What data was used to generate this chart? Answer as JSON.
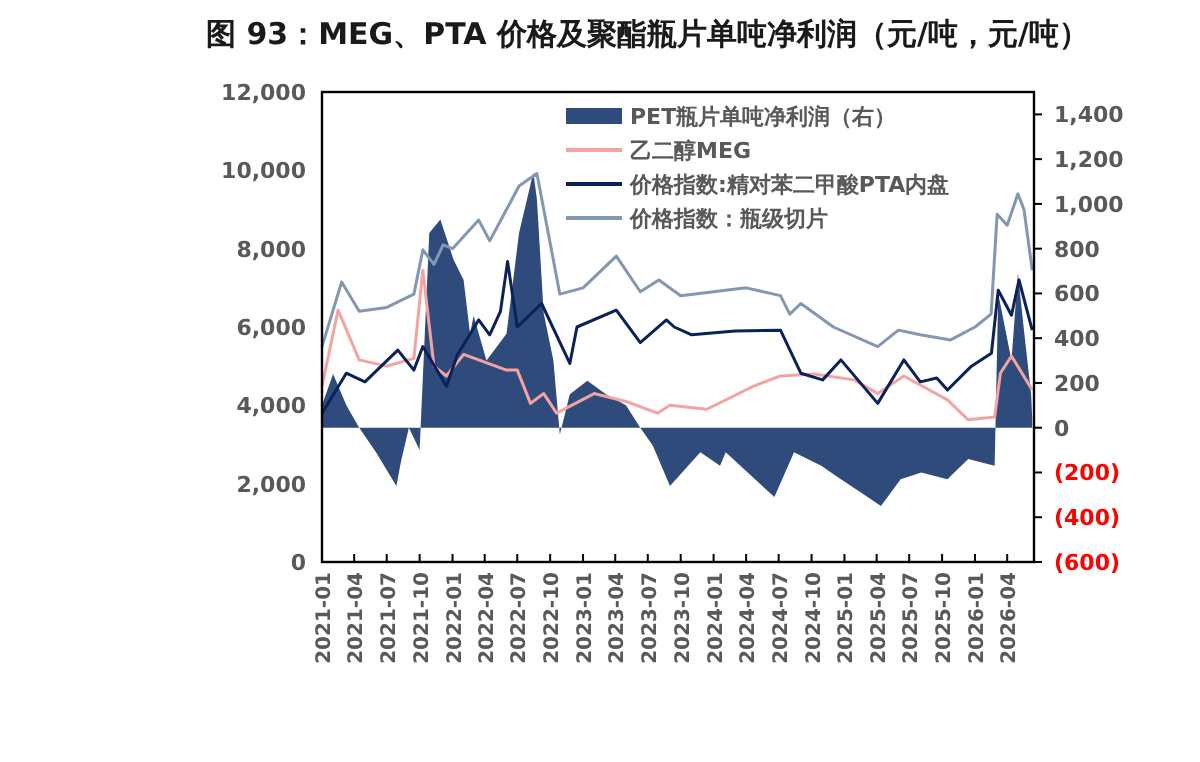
{
  "chart_data": {
    "type": "line",
    "title": "图 93：MEG、PTA 价格及聚酯瓶片单吨净利润（元/吨，元/吨）",
    "legend": "top",
    "grid": false,
    "xlim": [
      "2021-01-01",
      "2026-06-15"
    ],
    "xticks": [
      "2021-01",
      "2021-04",
      "2021-07",
      "2021-10",
      "2022-01",
      "2022-04",
      "2022-07",
      "2022-10",
      "2023-01",
      "2023-04",
      "2023-07",
      "2023-10",
      "2024-01",
      "2024-04",
      "2024-07",
      "2024-10",
      "2025-01",
      "2025-04",
      "2025-07",
      "2025-10",
      "2026-01",
      "2026-04"
    ],
    "ylim": [
      0,
      12000
    ],
    "yticks": [
      0,
      {
        "value": 2000,
        "label": "2,000"
      },
      {
        "value": 4000,
        "label": "4,000"
      },
      {
        "value": 6000,
        "label": "6,000"
      },
      {
        "value": 8000,
        "label": "8,000"
      },
      {
        "value": 10000,
        "label": "10,000"
      },
      {
        "value": 12000,
        "label": "12,000"
      }
    ],
    "y2lim": [
      -600,
      1500
    ],
    "y2ticks": [
      {
        "value": -600,
        "label": "(600)"
      },
      {
        "value": -400,
        "label": "(400)"
      },
      {
        "value": -200,
        "label": "(200)"
      },
      0,
      {
        "value": 200,
        "label": "200"
      },
      {
        "value": 400,
        "label": "400"
      },
      {
        "value": 600,
        "label": "600"
      },
      {
        "value": 800,
        "label": "800"
      },
      {
        "value": 1000,
        "label": "1,000"
      },
      {
        "value": 1200,
        "label": "1,200"
      },
      {
        "value": 1400,
        "label": "1,400"
      }
    ],
    "series": [
      {
        "name": "PET瓶片单吨净利润（右）",
        "type": "area",
        "axis": "y2",
        "color": "#2f4b7c",
        "x": [
          "2021-01-01",
          "2021-02-01",
          "2021-03-10",
          "2021-04-15",
          "2021-06-01",
          "2021-07-28",
          "2021-08-10",
          "2021-09-01",
          "2021-10-01",
          "2021-10-28",
          "2021-11-28",
          "2022-01-04",
          "2022-02-01",
          "2022-02-19",
          "2022-03-01",
          "2022-04-06",
          "2022-06-01",
          "2022-07-06",
          "2022-08-15",
          "2022-08-25",
          "2022-09-13",
          "2022-10-10",
          "2022-10-28",
          "2022-11-25",
          "2023-01-13",
          "2023-03-06",
          "2023-05-01",
          "2023-06-10",
          "2023-07-15",
          "2023-09-01",
          "2023-11-25",
          "2024-01-19",
          "2024-02-04",
          "2024-06-19",
          "2024-08-13",
          "2024-10-28",
          "2024-12-22",
          "2025-02-16",
          "2025-04-13",
          "2025-06-07",
          "2025-08-04",
          "2025-10-16",
          "2025-12-13",
          "2026-02-25",
          "2026-03-07",
          "2026-04-13",
          "2026-05-01",
          "2026-05-19",
          "2026-06-07",
          "2026-06-10"
        ],
        "values": [
          100,
          240,
          100,
          0,
          -110,
          -260,
          -150,
          0,
          -100,
          870,
          930,
          750,
          660,
          420,
          500,
          300,
          420,
          870,
          1140,
          1020,
          510,
          300,
          -30,
          150,
          210,
          150,
          100,
          0,
          -80,
          -260,
          -110,
          -170,
          -110,
          -310,
          -110,
          -170,
          -230,
          -290,
          -350,
          -230,
          -200,
          -230,
          -140,
          -170,
          600,
          300,
          690,
          420,
          150,
          40
        ]
      },
      {
        "name": "乙二醇MEG",
        "color": "#f4a3a3",
        "x": [
          "2021-01-01",
          "2021-02-15",
          "2021-04-15",
          "2021-07-01",
          "2021-09-15",
          "2021-10-10",
          "2021-11-10",
          "2021-12-15",
          "2022-02-01",
          "2022-06-01",
          "2022-07-01",
          "2022-08-07",
          "2022-09-13",
          "2022-10-19",
          "2023-02-01",
          "2023-05-01",
          "2023-07-28",
          "2023-09-01",
          "2023-12-13",
          "2024-04-22",
          "2024-07-06",
          "2024-10-07",
          "2025-01-28",
          "2025-04-04",
          "2025-06-16",
          "2025-10-16",
          "2025-12-13",
          "2026-02-25",
          "2026-03-13",
          "2026-04-13",
          "2026-06-10"
        ],
        "values": [
          4490,
          6430,
          5160,
          5000,
          5200,
          7450,
          5000,
          4750,
          5300,
          4900,
          4900,
          4050,
          4300,
          3800,
          4300,
          4100,
          3800,
          4000,
          3900,
          4490,
          4750,
          4800,
          4650,
          4300,
          4750,
          4140,
          3630,
          3700,
          4820,
          5260,
          4390
        ]
      },
      {
        "name": "价格指数:精对苯二甲酸PTA内盘",
        "color": "#0b2159",
        "x": [
          "2021-01-01",
          "2021-03-10",
          "2021-05-01",
          "2021-08-01",
          "2021-09-15",
          "2021-10-10",
          "2021-12-15",
          "2022-01-15",
          "2022-03-15",
          "2022-04-15",
          "2022-05-15",
          "2022-06-04",
          "2022-07-01",
          "2022-09-07",
          "2022-11-25",
          "2022-12-15",
          "2023-04-04",
          "2023-06-10",
          "2023-08-22",
          "2023-09-13",
          "2023-11-01",
          "2024-03-01",
          "2024-07-06",
          "2024-09-01",
          "2024-11-01",
          "2024-12-22",
          "2025-04-04",
          "2025-06-16",
          "2025-08-01",
          "2025-09-16",
          "2025-10-16",
          "2025-12-22",
          "2026-02-16",
          "2026-03-07",
          "2026-04-13",
          "2026-05-04",
          "2026-06-10"
        ],
        "values": [
          3800,
          4820,
          4600,
          5410,
          4900,
          5500,
          4490,
          5300,
          6180,
          5800,
          6400,
          7670,
          6000,
          6600,
          5070,
          6000,
          6430,
          5600,
          6180,
          6000,
          5800,
          5900,
          5920,
          4820,
          4650,
          5160,
          4050,
          5160,
          4600,
          4700,
          4390,
          5000,
          5330,
          6940,
          6300,
          7200,
          5920
        ]
      },
      {
        "name": "价格指数：瓶级切片",
        "color": "#8497b0",
        "x": [
          "2021-01-01",
          "2021-02-25",
          "2021-04-15",
          "2021-07-01",
          "2021-09-15",
          "2021-10-10",
          "2021-11-10",
          "2021-12-06",
          "2022-01-01",
          "2022-03-15",
          "2022-04-15",
          "2022-06-01",
          "2022-07-06",
          "2022-08-25",
          "2022-10-28",
          "2023-01-01",
          "2023-04-04",
          "2023-06-10",
          "2023-08-01",
          "2023-10-01",
          "2024-01-01",
          "2024-04-01",
          "2024-07-06",
          "2024-08-01",
          "2024-09-01",
          "2024-12-01",
          "2025-04-04",
          "2025-06-01",
          "2025-08-01",
          "2025-10-25",
          "2026-01-01",
          "2026-02-15",
          "2026-03-04",
          "2026-04-01",
          "2026-05-01",
          "2026-05-18",
          "2026-06-10"
        ],
        "values": [
          5500,
          7150,
          6400,
          6500,
          6840,
          7970,
          7600,
          8100,
          8000,
          8730,
          8200,
          9000,
          9600,
          9920,
          6840,
          7000,
          7810,
          6900,
          7200,
          6800,
          6900,
          7000,
          6800,
          6330,
          6600,
          6000,
          5500,
          5920,
          5800,
          5670,
          6000,
          6330,
          8880,
          8600,
          9400,
          9000,
          7450
        ]
      }
    ]
  }
}
